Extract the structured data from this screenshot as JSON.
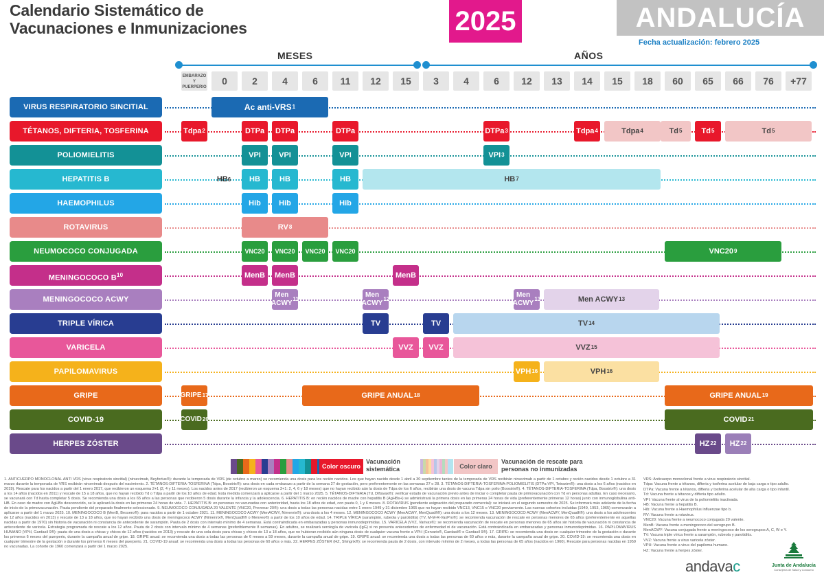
{
  "header": {
    "title_line1": "Calendario Sistemático de",
    "title_line2": "Vacunaciones e Inmunizaciones",
    "year": "2025",
    "region": "ANDALUCÍA",
    "update_date": "Fecha actualización: febrero 2025"
  },
  "axis": {
    "months_label": "MESES",
    "years_label": "AÑOS",
    "pregnancy_label": "EMBARAZO Y PUERPERIO",
    "ages": [
      "0",
      "2",
      "4",
      "6",
      "11",
      "12",
      "15",
      "3",
      "4",
      "6",
      "12",
      "13",
      "14",
      "15",
      "18",
      "60",
      "65",
      "66",
      "76",
      "+77"
    ]
  },
  "rows": [
    {
      "label": "VIRUS RESPIRATORIO SINCITIAL",
      "color": "#1b6ab3"
    },
    {
      "label": "TÉTANOS, DIFTERIA, TOSFERINA",
      "color": "#e8182b"
    },
    {
      "label": "POLIOMIELITIS",
      "color": "#139196"
    },
    {
      "label": "HEPATITIS B",
      "color": "#26b8d0"
    },
    {
      "label": "HAEMOPHILUS",
      "color": "#23a6e6"
    },
    {
      "label": "ROTAVIRUS",
      "color": "#e88a8a"
    },
    {
      "label": "NEUMOCOCO CONJUGADA",
      "color": "#2a9e3e"
    },
    {
      "label": "MENINGOCOCO B",
      "sup": "10",
      "color": "#c42f8a"
    },
    {
      "label": "MENINGOCOCO ACWY",
      "color": "#a97fbf"
    },
    {
      "label": "TRIPLE VÍRICA",
      "color": "#283d91"
    },
    {
      "label": "VARICELA",
      "color": "#e8579a"
    },
    {
      "label": "PAPILOMAVIRUS",
      "color": "#f5b21b"
    },
    {
      "label": "GRIPE",
      "color": "#e8691a"
    },
    {
      "label": "COVID-19",
      "color": "#4a6b1f"
    },
    {
      "label": "HERPES ZÓSTER",
      "color": "#6a4a8a"
    }
  ],
  "vaccines": {
    "vrs": {
      "text": "Ac anti-VRS",
      "sup": "1"
    },
    "tdpa_preg": {
      "text": "Tdpa",
      "sup": "2"
    },
    "dtpa": {
      "text": "DTPa"
    },
    "dtpa_6y": {
      "text": "DTPa",
      "sup": "3"
    },
    "tdpa_14": {
      "text": "Tdpa",
      "sup": "4"
    },
    "tdpa_light": {
      "text": "Tdpa",
      "sup": "4"
    },
    "td_light": {
      "text": "Td",
      "sup": "5"
    },
    "td_65": {
      "text": "Td",
      "sup": "5"
    },
    "td_rescue": {
      "text": "Td",
      "sup": "5"
    },
    "vpi": {
      "text": "VPI"
    },
    "vpi_6y": {
      "text": "VPI",
      "sup": "3"
    },
    "hb_preg": {
      "text": "HB",
      "sup": "6"
    },
    "hb": {
      "text": "HB"
    },
    "hb_rescue": {
      "text": "HB",
      "sup": "7"
    },
    "hib": {
      "text": "Hib"
    },
    "rv": {
      "text": "RV",
      "sup": "8"
    },
    "vnc20": {
      "text": "VNC20"
    },
    "vnc20_adult": {
      "text": "VNC20",
      "sup": "9"
    },
    "menb": {
      "text": "MenB"
    },
    "men_acwy": {
      "text": "Men ACWY"
    },
    "men_sup1": "11",
    "men_sup2": "12",
    "men_sup3": "13",
    "men_acwy_rescue": {
      "text": "Men ACWY",
      "sup": "13"
    },
    "tv": {
      "text": "TV"
    },
    "tv_rescue": {
      "text": "TV",
      "sup": "14"
    },
    "vvz": {
      "text": "VVZ"
    },
    "vvz_rescue": {
      "text": "VVZ",
      "sup": "15"
    },
    "vph": {
      "text": "VPH",
      "sup": "16"
    },
    "vph_rescue": {
      "text": "VPH",
      "sup": "16"
    },
    "gripe_preg": {
      "text": "GRIPE",
      "sup": "17"
    },
    "gripe_anual": {
      "text": "GRIPE ANUAL",
      "sup": "18"
    },
    "gripe_anual_adult": {
      "text": "GRIPE ANUAL",
      "sup": "19"
    },
    "covid_preg": {
      "text": "COVID",
      "sup": "20"
    },
    "covid_adult": {
      "text": "COVID",
      "sup": "21"
    },
    "hz": {
      "text": "HZ",
      "sup": "22"
    }
  },
  "legend": {
    "dark_pill": "Color oscuro",
    "dark_text_1": "Vacunación",
    "dark_text_2": "sistemática",
    "light_pill": "Color claro",
    "light_text_1": "Vacunación de rescate para",
    "light_text_2": "personas no inmunizadas",
    "dark_colors": [
      "#6a4a8a",
      "#4a6b1f",
      "#e8691a",
      "#f5b21b",
      "#e8579a",
      "#283d91",
      "#a97fbf",
      "#c42f8a",
      "#2a9e3e",
      "#e88a8a",
      "#23a6e6",
      "#26b8d0",
      "#139196",
      "#e8182b",
      "#1b6ab3"
    ],
    "light_colors": [
      "#cbb6dd",
      "#c9d9a8",
      "#f5c09a",
      "#fbe0a2",
      "#f5c2d8",
      "#b8c6e8",
      "#e3d3ea",
      "#ebb5d5",
      "#b5dcbd",
      "#f2c6c6",
      "#b5dff5",
      "#b3e6ee"
    ]
  },
  "footnotes": "1. ANTICUERPO MONOCLONAL ANTI VRS (virus respiratorio sincitial) (nirsevimab, Beyfortus®): durante la temporada de VRS (de octubre a marzo) se recomienda una dosis para los recién nacidos. Los que hayan nacido desde 1 abril a 30 septiembre tantes de la temporada de VRS recibirán nirsevimab a partir de 1 octubre y recién nacidos desde 1 octubre a 31 marzo durante la temporada de VRS recibirán nirsevimab después del nacimiento. 2. TÉTANOS-DIFTERIA-TOSFERINA (Tdpa, Boostrix®): una dosis en cada embarazo a partir de la semana 27 de gestación, pero preferentemente en las semanas 27 o 28. 3. TÉTANOS-DIFTERIA-TOSFERINA-POLIOMIELITIS (DTPa-VPI, Tetraxim®): una dosis a los 6 años (nacidos en 2019). Rescate para los nacidos a partir del 1 enero 2017, que recibieron un esquema 2+1 (2, 4 y 11 meses). Los nacidos antes de 2017 (recibieron un esquema 3+1: 2, 4, 6 y 18 meses) que no hayan recibido aún la dosis de Tdpa de los 6 años, recibirán una dosis de vacuna Tdpa sin polio (Boostrix®). 4. TÉTANOS-DIFTERIA-TOSFERINA (Tdpa, Boostrix®): una dosis a los 14 años (nacidos en 2011) y rescate de 15 a 18 años, que no hayan recibido Td o Tdpa a partir de los 10 años de edad. Esta medida comenzará a aplicarse a partir del 1 marzo 2025. 5. TÉTANOS-DIFTERIA (Td, Diftavax®): verificar estado de vacunación previo antes de iniciar o completar pauta de primovacunación con Td en personas adultas. En caso necesario, se vacunará con Td hasta completar 5 dosis. Se recomienda una dosis a los 65 años a las personas que recibieron 5 dosis durante la infancia y la adolescencia. 6. HEPATITIS B: en recién nacidos de madre con hepatitis B (AgHBs+) se administrará la primera dosis en las primeras 24 horas de vida (preferentemente primeras 12 horas) junto con inmunoglobulina anti-HB. En caso de madre con AgHBs desconocido, se le aplicará la dosis en las primeras 24 horas de vida. 7. HEPATITIS B: en personas no vacunadas con anterioridad, hasta los 18 años de edad, con pauta 0, 1 y 6 meses. 8. ROTAVIRUS (pendiente asignación del preparado comercial): se iniciará en el segundo semestre de 2025. Se informará más adelante de la fecha de inicio de la primovacunación. Pauta pendiente del preparado finalmente seleccionado. 9. NEUMOCOCO CONJUGADA 20 VALENTE (VNC20, Prevenar 20®): una dosis a todas las personas nacidas entre 1 enero 1949 y 31 diciembre 1965 que no hayan recibido VNC13, VNC15 o VNC20 previamente. Las nuevas cohortes incluidas (1949, 1953, 1965) comenzarán a aplicarse a partir del 1 marzo 2025. 10. MENINGOCOCO B (MenB, Bexsero®): para nacidos a partir de 1 octubre 2021. 11. MENINGOCOCO ACWY (MenACWY, Nimenrix®): una dosis a los 4 meses. 12. MENINGOCOCO ACWY (MenACWY, MenQuadfi®): una dosis a los 12 meses. 13. MENINGOCOCO ACWY (MenACWY, MenQuadfi®): una dosis a los adolescentes de 12 años (nacidos en 2013) y rescate de 13 a 18 años, que no hayan recibido una dosis de meningococo ACWY (Nimenrix®, MenQuadfi® o Menveo®) a partir de los 10 años de edad. 14. TRIPLE VÍRICA (sarampión, rubeola y parotiditis) (TV, M-M-R-VaxPro®): se recomienda vacunación de rescate en personas menores de 65 años (preferentemente en aquellas nacidas a partir de 1970) sin historia de vacunación ni constancia de antecedente de sarampión. Pauta de 2 dosis con intervalo mínimo de 4 semanas. Está contraindicada en embarazadas y personas inmunodeprimidas. 15. VARICELA (VVZ, Varivax®): se recomienda vacunación de rescate en personas menores de 65 años sin historia de vacunación ni constancia de antecedente de varicela. Estrategia programada de rescate a los 12 años. Pauta de 2 dosis con intervalo mínimo de 4 semanas (preferiblemente 8 semanas). En adultos, se realizará serología de varicela (IgG) si no presenta antecedentes de enfermedad ni de vacunación. Está contraindicada en embarazadas y personas inmunodeprimidas. 16. PAPILOMAVIRUS HUMANO (VPH, Gardasil 9®): pauta de una dosis a chicas y chicos de 12 años (nacidos en 2013) y rescate de una sola dosis para chicas y chicos de 13 a 18 años, que no hubieran recibido aún ninguna dosis de cualquier vacuna frente a VPH (Cervarix®, Gardasil® o Gardasil 9®). 17. GRIPE: se recomienda una dosis en cualquier trimestre de la gestación o durante los primeros 6 meses del puerperio, durante la campaña anual de gripe. 18. GRIPE anual: se recomienda una dosis a todas las personas de 6 meses a 59 meses, durante la campaña anual de gripe. 19. GRIPE anual: se recomienda una dosis a todas las personas de 60 años o más, durante la campaña anual de gripe. 20. COVID-19: se recomienda una dosis en cualquier trimestre de la gestación o durante los primeros 6 meses del puerperio. 21. COVID-19 anual: se recomienda una dosis a todas las personas de 60 años o más. 22. HERPES ZÓSTER (HZ, Shingrix®): se recomienda pauta de 2 dosis, con intervalo mínimo de 2 meses, a todas las personas de 65 años (nacidos en 1960). Rescate para personas nacidas en 1959 no vacunadas. La cohorte de 1960 comenzará a partir del 1 marzo 2025.",
  "abbreviations": [
    "VRS: Anticuerpo monoclonal frente a virus respiratorio sincitial.",
    "Tdpa: Vacuna frente a tétanos, difteria y tosferina acelular de baja carga o tipo adulto.",
    "DTPa: Vacuna frente a tétanos, difteria y tosferina acelular de alta carga o tipo infantil.",
    "Td: Vacuna frente a tétanos y difteria tipo adulto.",
    "VPI: Vacuna frente al virus de la poliomielitis inactivada.",
    "HB: Vacuna frente a hepatitis B.",
    "Hib: Vacuna frente a Haemophilus influenzae tipo b.",
    "RV: Vacuna frente a rotavirus.",
    "VNC20: Vacuna frente a neumococo conjugada 20 valente.",
    "MenB: Vacuna frente a meningococo del serogrupo B.",
    "MenACWY: Vacuna conjugada frente a meningococo de los serogrupos A, C, W e Y.",
    "TV: Vacuna triple vírica frente a sarampión, rubeola y parotiditis.",
    "VVZ: Vacuna frente a virus varicela zóster.",
    "VPH: Vacuna frente a virus del papiloma humano.",
    "HZ: Vacuna frente a herpes zóster."
  ],
  "logos": {
    "andavac_1": "andava",
    "andavac_2": "c",
    "junta_name": "Junta de Andalucía",
    "junta_sub": "Consejería de Salud y Consumo"
  }
}
